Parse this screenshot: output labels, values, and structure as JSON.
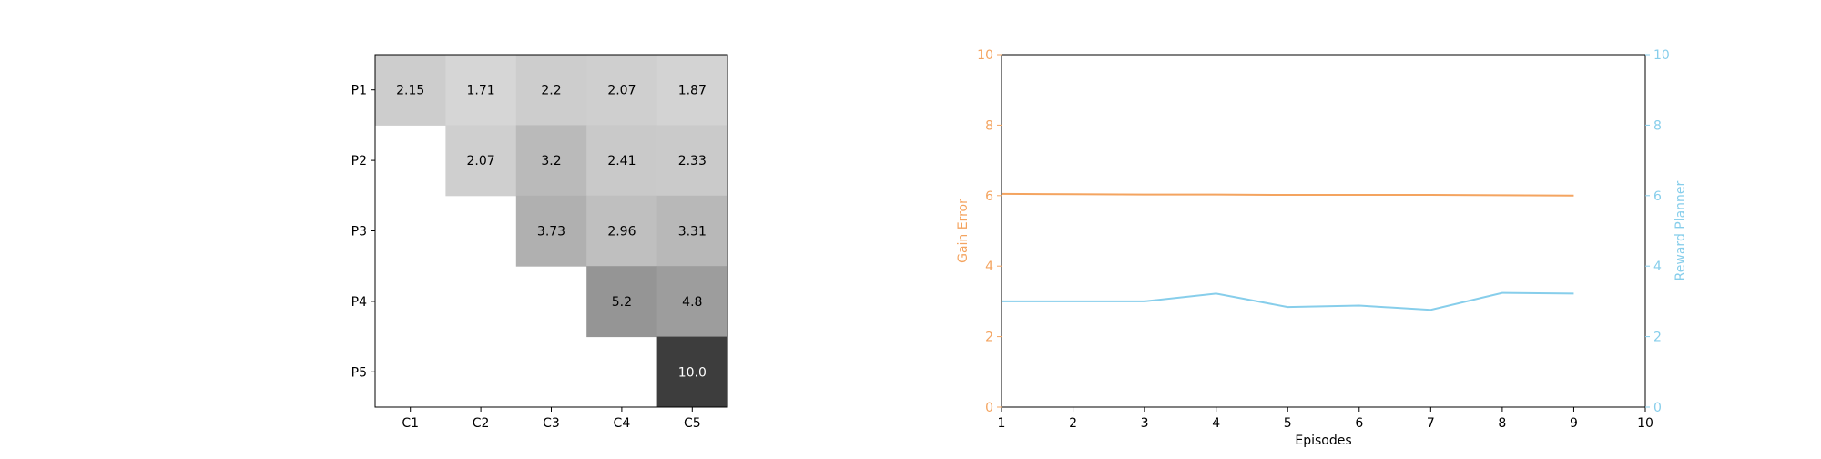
{
  "colors": {
    "gain": "#f4a460",
    "reward": "#87ceeb",
    "axis": "#000000"
  },
  "chart_data": [
    {
      "type": "heatmap",
      "rows": [
        "P1",
        "P2",
        "P3",
        "P4",
        "P5"
      ],
      "columns": [
        "C1",
        "C2",
        "C3",
        "C4",
        "C5"
      ],
      "values": [
        [
          2.15,
          1.71,
          2.2,
          2.07,
          1.87
        ],
        [
          null,
          2.07,
          3.2,
          2.41,
          2.33
        ],
        [
          null,
          null,
          3.73,
          2.96,
          3.31
        ],
        [
          null,
          null,
          null,
          5.2,
          4.8
        ],
        [
          null,
          null,
          null,
          null,
          10.0
        ]
      ],
      "value_labels": [
        [
          "2.15",
          "1.71",
          "2.2",
          "2.07",
          "1.87"
        ],
        [
          "",
          "2.07",
          "3.2",
          "2.41",
          "2.33"
        ],
        [
          "",
          "",
          "3.73",
          "2.96",
          "3.31"
        ],
        [
          "",
          "",
          "",
          "5.2",
          "4.8"
        ],
        [
          "",
          "",
          "",
          "",
          "10.0"
        ]
      ],
      "colormap": "Greys",
      "vmin": 0,
      "vmax": 12.5
    },
    {
      "type": "line",
      "x": [
        1,
        2,
        3,
        4,
        5,
        6,
        7,
        8,
        9
      ],
      "xlabel": "Episodes",
      "xlim": [
        1,
        10
      ],
      "xticks": [
        "1",
        "2",
        "3",
        "4",
        "5",
        "6",
        "7",
        "8",
        "9",
        "10"
      ],
      "ylabel": "Gain Error",
      "ylim": [
        0,
        10
      ],
      "yticks": [
        "0",
        "2",
        "4",
        "6",
        "8",
        "10"
      ],
      "y2label": "Reward Planner",
      "y2lim": [
        0,
        10
      ],
      "y2ticks": [
        "0",
        "2",
        "4",
        "6",
        "8",
        "10"
      ],
      "series": [
        {
          "name": "Gain Error",
          "axis": "left",
          "color": "#f4a460",
          "values": [
            6.05,
            6.04,
            6.03,
            6.03,
            6.02,
            6.02,
            6.02,
            6.01,
            6.0
          ]
        },
        {
          "name": "Reward Planner",
          "axis": "right",
          "color": "#87ceeb",
          "values": [
            3.0,
            3.0,
            3.0,
            3.22,
            2.84,
            2.88,
            2.76,
            3.24,
            3.22
          ]
        }
      ]
    }
  ]
}
